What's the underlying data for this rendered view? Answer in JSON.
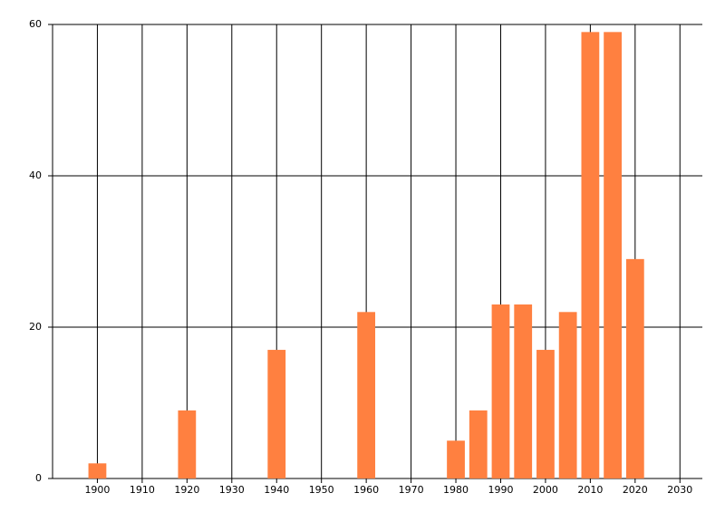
{
  "chart_data": {
    "type": "bar",
    "x": [
      1900,
      1920,
      1940,
      1960,
      1980,
      1985,
      1990,
      1995,
      2000,
      2005,
      2010,
      2015,
      2020
    ],
    "values": [
      2,
      9,
      17,
      22,
      5,
      9,
      23,
      23,
      17,
      22,
      59,
      59,
      29
    ],
    "color": "#ff8040",
    "xlim": [
      1890,
      2035
    ],
    "xticks": [
      1900,
      1910,
      1920,
      1930,
      1940,
      1950,
      1960,
      1970,
      1980,
      1990,
      2000,
      2010,
      2020,
      2030
    ],
    "ylim": [
      0,
      60
    ],
    "yticks": [
      0,
      20,
      40,
      60
    ],
    "grid": true
  }
}
